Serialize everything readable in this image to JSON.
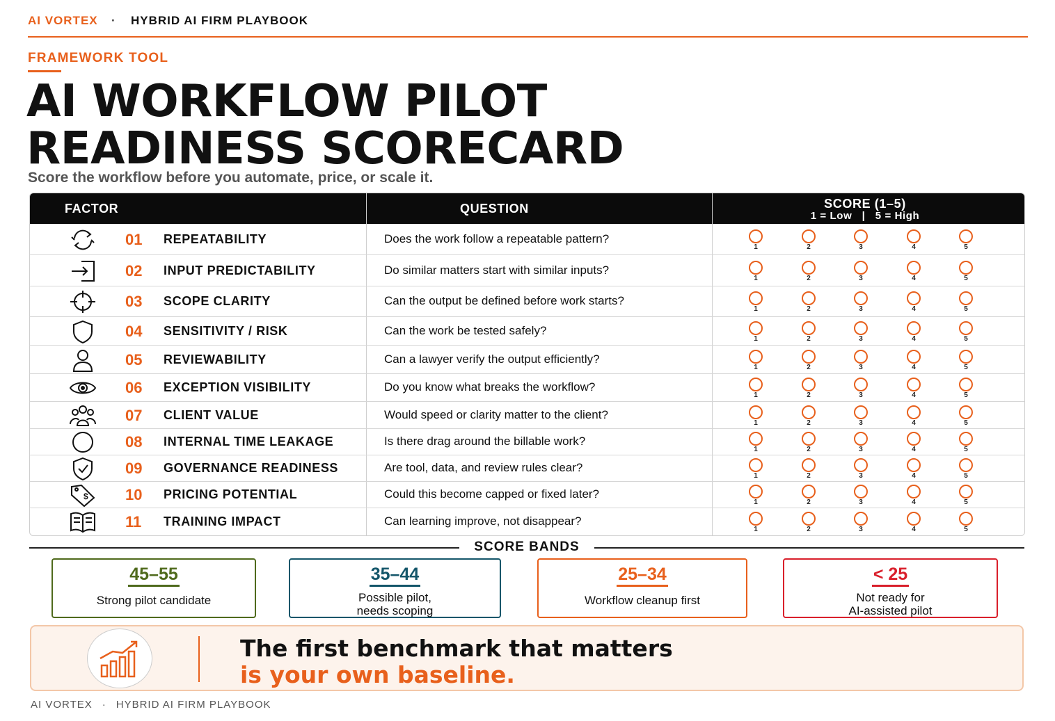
{
  "header": {
    "brand": "AI VORTEX",
    "separator": "·",
    "book": "HYBRID AI FIRM PLAYBOOK"
  },
  "kicker": "FRAMEWORK TOOL",
  "title": {
    "line1": "AI WORKFLOW PILOT",
    "line2": "READINESS SCORECARD"
  },
  "subtitle": "Score the workflow before you automate, price, or scale it.",
  "table": {
    "headers": {
      "factor": "FACTOR",
      "question": "QUESTION",
      "score": "SCORE (1–5)",
      "score_scale": "1 = Low   |   5 = High"
    },
    "score_options": [
      "1",
      "2",
      "3",
      "4",
      "5"
    ],
    "rows": [
      {
        "num": "01",
        "factor": "REPEATABILITY",
        "question": "Does the work follow a repeatable pattern?",
        "icon": "refresh-icon"
      },
      {
        "num": "02",
        "factor": "INPUT PREDICTABILITY",
        "question": "Do similar matters start with similar inputs?",
        "icon": "input-arrow-icon"
      },
      {
        "num": "03",
        "factor": "SCOPE CLARITY",
        "question": "Can the output be defined before work starts?",
        "icon": "crosshair-icon"
      },
      {
        "num": "04",
        "factor": "SENSITIVITY / RISK",
        "question": "Can the work be tested safely?",
        "icon": "shield-icon"
      },
      {
        "num": "05",
        "factor": "REVIEWABILITY",
        "question": "Can a lawyer verify the output efficiently?",
        "icon": "person-icon"
      },
      {
        "num": "06",
        "factor": "EXCEPTION VISIBILITY",
        "question": "Do you know what breaks the workflow?",
        "icon": "eye-icon"
      },
      {
        "num": "07",
        "factor": "CLIENT VALUE",
        "question": "Would speed or clarity matter to the client?",
        "icon": "group-icon"
      },
      {
        "num": "08",
        "factor": "INTERNAL TIME LEAKAGE",
        "question": "Is there drag around the billable work?",
        "icon": "circle-icon"
      },
      {
        "num": "09",
        "factor": "GOVERNANCE READINESS",
        "question": "Are tool, data, and review rules clear?",
        "icon": "shield-check-icon"
      },
      {
        "num": "10",
        "factor": "PRICING POTENTIAL",
        "question": "Could this become capped or fixed later?",
        "icon": "price-tag-icon"
      },
      {
        "num": "11",
        "factor": "TRAINING IMPACT",
        "question": "Can learning improve, not disappear?",
        "icon": "book-icon"
      }
    ]
  },
  "bands": {
    "heading": "SCORE BANDS",
    "items": [
      {
        "range": "45–55",
        "desc1": "Strong pilot candidate",
        "desc2": "",
        "color": "#4f6a1c"
      },
      {
        "range": "35–44",
        "desc1": "Possible pilot,",
        "desc2": "needs scoping",
        "color": "#14566a"
      },
      {
        "range": "25–34",
        "desc1": "Workflow cleanup first",
        "desc2": "",
        "color": "#e8601c"
      },
      {
        "range": "< 25",
        "desc1": "Not ready for",
        "desc2": "AI-assisted pilot",
        "color": "#d91f2b"
      }
    ]
  },
  "callout": {
    "line1": "The first benchmark that matters",
    "line2": "is your own baseline.",
    "icon": "growth-chart-icon"
  },
  "footer": {
    "brand": "AI VORTEX",
    "separator": "·",
    "book": "HYBRID AI FIRM PLAYBOOK"
  },
  "colors": {
    "accent": "#e8601c",
    "header_bg": "#0b0b0b"
  }
}
